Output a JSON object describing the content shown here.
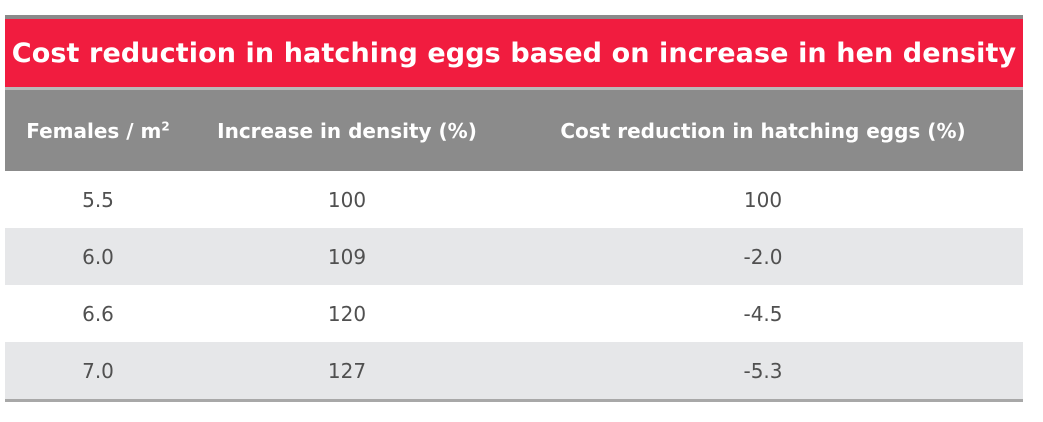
{
  "table": {
    "title": "Cost reduction in hatching eggs based on increase in hen density",
    "headers": {
      "col1_base": "Females / m",
      "col1_sup": "2",
      "col2": "Increase in density (%)",
      "col3": "Cost reduction in hatching eggs (%)"
    },
    "rows": [
      {
        "females": "5.5",
        "increase": "100",
        "cost_reduction": "100"
      },
      {
        "females": "6.0",
        "increase": "109",
        "cost_reduction": "-2.0"
      },
      {
        "females": "6.6",
        "increase": "120",
        "cost_reduction": "-4.5"
      },
      {
        "females": "7.0",
        "increase": "127",
        "cost_reduction": "-5.3"
      }
    ],
    "colors": {
      "title_bg": "#f11c3f",
      "header_bg": "#8b8b8b",
      "shade_row_bg": "#e6e7e9",
      "text": "#505050"
    }
  }
}
